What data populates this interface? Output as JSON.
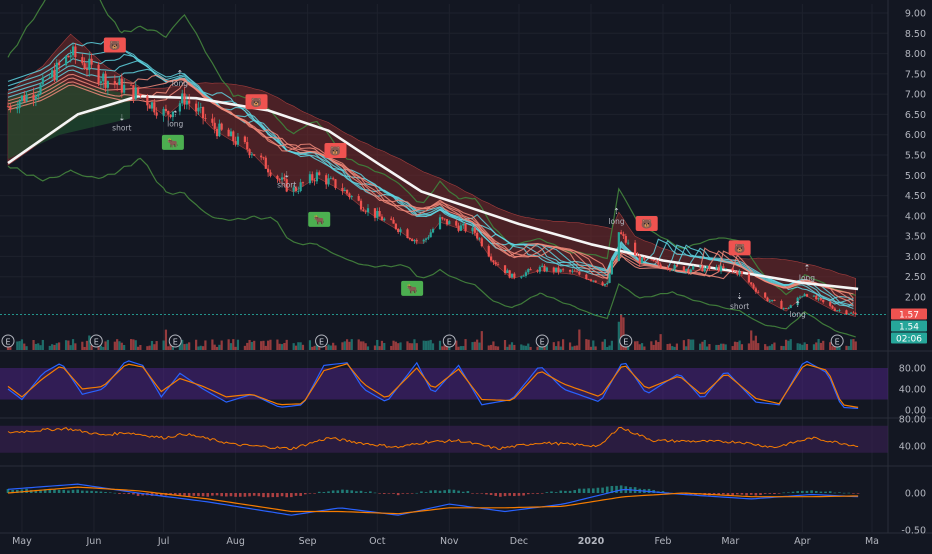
{
  "chart_data": {
    "type": "candlestick",
    "x_labels": [
      "May",
      "Jun",
      "Jul",
      "Aug",
      "Sep",
      "Oct",
      "Nov",
      "Dec",
      "2020",
      "Feb",
      "Mar",
      "Apr",
      "Ma"
    ],
    "x_label_dates": [
      "2019-05-01",
      "2019-06-01",
      "2019-07-01",
      "2019-08-01",
      "2019-09-01",
      "2019-10-01",
      "2019-11-01",
      "2019-12-01",
      "2020-01-01",
      "2020-02-01",
      "2020-03-01",
      "2020-04-01",
      "2020-05-01"
    ],
    "price_axis": {
      "ticks": [
        "9.00",
        "8.50",
        "8.00",
        "7.50",
        "7.00",
        "6.50",
        "6.00",
        "5.50",
        "5.00",
        "4.50",
        "4.00",
        "3.50",
        "3.00",
        "2.50",
        "2.00"
      ],
      "ylim": [
        1.45,
        9.2
      ],
      "badges": [
        {
          "text": "1.57",
          "color": "#ef5350"
        },
        {
          "text": "1.54",
          "color": "#26a69a"
        },
        {
          "text": "02:06",
          "color": "#26a69a"
        }
      ],
      "price_line": 1.57
    },
    "price_anchors": [
      {
        "date": "2019-04-25",
        "value": 6.7
      },
      {
        "date": "2019-05-10",
        "value": 7.2
      },
      {
        "date": "2019-05-22",
        "value": 8.0
      },
      {
        "date": "2019-06-05",
        "value": 7.4
      },
      {
        "date": "2019-06-20",
        "value": 7.0
      },
      {
        "date": "2019-07-02",
        "value": 6.5
      },
      {
        "date": "2019-07-10",
        "value": 6.9
      },
      {
        "date": "2019-07-22",
        "value": 6.2
      },
      {
        "date": "2019-08-08",
        "value": 5.6
      },
      {
        "date": "2019-08-25",
        "value": 4.6
      },
      {
        "date": "2019-09-05",
        "value": 5.0
      },
      {
        "date": "2019-09-15",
        "value": 4.7
      },
      {
        "date": "2019-09-28",
        "value": 4.1
      },
      {
        "date": "2019-10-10",
        "value": 3.7
      },
      {
        "date": "2019-10-20",
        "value": 3.3
      },
      {
        "date": "2019-10-28",
        "value": 3.9
      },
      {
        "date": "2019-11-12",
        "value": 3.6
      },
      {
        "date": "2019-11-20",
        "value": 2.9
      },
      {
        "date": "2019-11-28",
        "value": 2.5
      },
      {
        "date": "2019-12-10",
        "value": 2.7
      },
      {
        "date": "2019-12-25",
        "value": 2.6
      },
      {
        "date": "2020-01-08",
        "value": 2.3
      },
      {
        "date": "2020-01-13",
        "value": 3.6
      },
      {
        "date": "2020-01-22",
        "value": 2.9
      },
      {
        "date": "2020-02-08",
        "value": 2.7
      },
      {
        "date": "2020-02-25",
        "value": 2.7
      },
      {
        "date": "2020-03-05",
        "value": 2.6
      },
      {
        "date": "2020-03-15",
        "value": 2.0
      },
      {
        "date": "2020-03-25",
        "value": 1.7
      },
      {
        "date": "2020-04-02",
        "value": 2.1
      },
      {
        "date": "2020-04-15",
        "value": 1.7
      },
      {
        "date": "2020-04-24",
        "value": 1.57
      }
    ],
    "moving_average": [
      {
        "date": "2019-04-25",
        "value": 5.3
      },
      {
        "date": "2019-05-25",
        "value": 6.5
      },
      {
        "date": "2019-06-20",
        "value": 6.95
      },
      {
        "date": "2019-07-15",
        "value": 6.9
      },
      {
        "date": "2019-08-15",
        "value": 6.6
      },
      {
        "date": "2019-09-10",
        "value": 6.1
      },
      {
        "date": "2019-10-01",
        "value": 5.3
      },
      {
        "date": "2019-10-20",
        "value": 4.6
      },
      {
        "date": "2019-11-10",
        "value": 4.2
      },
      {
        "date": "2019-12-01",
        "value": 3.8
      },
      {
        "date": "2020-01-01",
        "value": 3.3
      },
      {
        "date": "2020-02-01",
        "value": 2.9
      },
      {
        "date": "2020-03-01",
        "value": 2.65
      },
      {
        "date": "2020-04-01",
        "value": 2.35
      },
      {
        "date": "2020-04-25",
        "value": 2.2
      }
    ],
    "signals": [
      {
        "type": "bear",
        "date": "2019-06-10",
        "value": 8.2
      },
      {
        "type": "short",
        "date": "2019-06-13",
        "value": 6.2
      },
      {
        "type": "long",
        "date": "2019-07-08",
        "value": 7.3
      },
      {
        "type": "long",
        "date": "2019-07-06",
        "value": 6.3
      },
      {
        "type": "bull",
        "date": "2019-07-05",
        "value": 5.8
      },
      {
        "type": "bear",
        "date": "2019-08-10",
        "value": 6.8
      },
      {
        "type": "short",
        "date": "2019-08-23",
        "value": 4.8
      },
      {
        "type": "bear",
        "date": "2019-09-13",
        "value": 5.6
      },
      {
        "type": "bull",
        "date": "2019-09-06",
        "value": 3.9
      },
      {
        "type": "bull",
        "date": "2019-10-16",
        "value": 2.2
      },
      {
        "type": "long",
        "date": "2020-01-12",
        "value": 3.9
      },
      {
        "type": "bear",
        "date": "2020-01-25",
        "value": 3.8
      },
      {
        "type": "bear",
        "date": "2020-03-05",
        "value": 3.2
      },
      {
        "type": "short",
        "date": "2020-03-05",
        "value": 1.8
      },
      {
        "type": "long",
        "date": "2020-04-03",
        "value": 2.5
      },
      {
        "type": "long",
        "date": "2020-03-30",
        "value": 1.6
      }
    ],
    "earnings_markers": [
      "2019-04-25",
      "2019-06-02",
      "2019-07-06",
      "2019-09-07",
      "2019-11-01",
      "2019-12-11",
      "2020-01-16",
      "2020-04-16"
    ],
    "stochastic": {
      "ticks": [
        "80.00",
        "40.00",
        "0.00"
      ],
      "ylim": [
        0,
        100
      ],
      "band": [
        20,
        80
      ],
      "points": [
        {
          "date": "2019-04-25",
          "k": 40,
          "d": 45
        },
        {
          "date": "2019-05-01",
          "k": 20,
          "d": 25
        },
        {
          "date": "2019-05-10",
          "k": 70,
          "d": 60
        },
        {
          "date": "2019-05-18",
          "k": 90,
          "d": 85
        },
        {
          "date": "2019-05-27",
          "k": 30,
          "d": 40
        },
        {
          "date": "2019-06-05",
          "k": 40,
          "d": 45
        },
        {
          "date": "2019-06-15",
          "k": 95,
          "d": 88
        },
        {
          "date": "2019-06-22",
          "k": 85,
          "d": 82
        },
        {
          "date": "2019-06-30",
          "k": 25,
          "d": 35
        },
        {
          "date": "2019-07-08",
          "k": 70,
          "d": 60
        },
        {
          "date": "2019-07-18",
          "k": 40,
          "d": 45
        },
        {
          "date": "2019-07-28",
          "k": 15,
          "d": 25
        },
        {
          "date": "2019-08-08",
          "k": 30,
          "d": 30
        },
        {
          "date": "2019-08-20",
          "k": 5,
          "d": 10
        },
        {
          "date": "2019-08-30",
          "k": 10,
          "d": 12
        },
        {
          "date": "2019-09-08",
          "k": 85,
          "d": 75
        },
        {
          "date": "2019-09-18",
          "k": 90,
          "d": 88
        },
        {
          "date": "2019-09-25",
          "k": 40,
          "d": 50
        },
        {
          "date": "2019-10-05",
          "k": 15,
          "d": 22
        },
        {
          "date": "2019-10-18",
          "k": 90,
          "d": 80
        },
        {
          "date": "2019-10-25",
          "k": 30,
          "d": 40
        },
        {
          "date": "2019-11-05",
          "k": 85,
          "d": 78
        },
        {
          "date": "2019-11-15",
          "k": 10,
          "d": 20
        },
        {
          "date": "2019-11-28",
          "k": 20,
          "d": 18
        },
        {
          "date": "2019-12-10",
          "k": 85,
          "d": 75
        },
        {
          "date": "2019-12-20",
          "k": 40,
          "d": 50
        },
        {
          "date": "2020-01-05",
          "k": 15,
          "d": 25
        },
        {
          "date": "2020-01-15",
          "k": 95,
          "d": 88
        },
        {
          "date": "2020-01-25",
          "k": 30,
          "d": 40
        },
        {
          "date": "2020-02-08",
          "k": 70,
          "d": 65
        },
        {
          "date": "2020-02-18",
          "k": 20,
          "d": 28
        },
        {
          "date": "2020-02-28",
          "k": 75,
          "d": 70
        },
        {
          "date": "2020-03-12",
          "k": 15,
          "d": 22
        },
        {
          "date": "2020-03-22",
          "k": 10,
          "d": 12
        },
        {
          "date": "2020-04-02",
          "k": 95,
          "d": 88
        },
        {
          "date": "2020-04-12",
          "k": 70,
          "d": 75
        },
        {
          "date": "2020-04-18",
          "k": 5,
          "d": 10
        },
        {
          "date": "2020-04-25",
          "k": 3,
          "d": 5
        }
      ]
    },
    "rsi": {
      "ticks": [
        "80.00",
        "40.00"
      ],
      "ylim": [
        20,
        100
      ],
      "band": [
        30,
        70
      ],
      "points": [
        {
          "date": "2019-04-25",
          "value": 60
        },
        {
          "date": "2019-05-20",
          "value": 66
        },
        {
          "date": "2019-06-05",
          "value": 56
        },
        {
          "date": "2019-06-15",
          "value": 60
        },
        {
          "date": "2019-07-01",
          "value": 52
        },
        {
          "date": "2019-07-10",
          "value": 58
        },
        {
          "date": "2019-08-01",
          "value": 42
        },
        {
          "date": "2019-08-25",
          "value": 36
        },
        {
          "date": "2019-09-10",
          "value": 52
        },
        {
          "date": "2019-09-25",
          "value": 44
        },
        {
          "date": "2019-10-10",
          "value": 38
        },
        {
          "date": "2019-10-22",
          "value": 46
        },
        {
          "date": "2019-11-05",
          "value": 48
        },
        {
          "date": "2019-11-22",
          "value": 36
        },
        {
          "date": "2019-12-10",
          "value": 45
        },
        {
          "date": "2020-01-05",
          "value": 40
        },
        {
          "date": "2020-01-13",
          "value": 68
        },
        {
          "date": "2020-01-28",
          "value": 48
        },
        {
          "date": "2020-02-15",
          "value": 47
        },
        {
          "date": "2020-03-05",
          "value": 46
        },
        {
          "date": "2020-03-20",
          "value": 38
        },
        {
          "date": "2020-04-05",
          "value": 52
        },
        {
          "date": "2020-04-25",
          "value": 40
        }
      ]
    },
    "macd": {
      "ticks": [
        "0.00",
        "-0.50"
      ],
      "ylim": [
        -0.62,
        0.35
      ],
      "points": [
        {
          "date": "2019-04-25",
          "macd": 0.05,
          "signal": 0.0,
          "hist": 0.05
        },
        {
          "date": "2019-05-25",
          "macd": 0.12,
          "signal": 0.08,
          "hist": 0.04
        },
        {
          "date": "2019-06-20",
          "macd": 0.0,
          "signal": 0.03,
          "hist": -0.03
        },
        {
          "date": "2019-07-20",
          "macd": -0.12,
          "signal": -0.08,
          "hist": -0.04
        },
        {
          "date": "2019-08-25",
          "macd": -0.3,
          "signal": -0.25,
          "hist": -0.05
        },
        {
          "date": "2019-09-15",
          "macd": -0.2,
          "signal": -0.25,
          "hist": 0.05
        },
        {
          "date": "2019-10-10",
          "macd": -0.3,
          "signal": -0.28,
          "hist": -0.02
        },
        {
          "date": "2019-11-01",
          "macd": -0.15,
          "signal": -0.2,
          "hist": 0.05
        },
        {
          "date": "2019-11-25",
          "macd": -0.25,
          "signal": -0.2,
          "hist": -0.05
        },
        {
          "date": "2019-12-20",
          "macd": -0.15,
          "signal": -0.18,
          "hist": 0.03
        },
        {
          "date": "2020-01-15",
          "macd": 0.05,
          "signal": -0.05,
          "hist": 0.1
        },
        {
          "date": "2020-02-10",
          "macd": -0.02,
          "signal": 0.0,
          "hist": -0.02
        },
        {
          "date": "2020-03-10",
          "macd": -0.08,
          "signal": -0.05,
          "hist": -0.03
        },
        {
          "date": "2020-04-05",
          "macd": -0.02,
          "signal": -0.05,
          "hist": 0.03
        },
        {
          "date": "2020-04-25",
          "macd": -0.05,
          "signal": -0.04,
          "hist": -0.01
        }
      ]
    },
    "colors": {
      "background": "#131722",
      "up": "#26a69a",
      "down": "#ef5350",
      "cloud": "#7a2a2a",
      "moving_average": "#f5f5f5",
      "bb_line": "#3f7a3a",
      "ribbon_cool": "#5fd3e0",
      "ribbon_warm": "#f28a7a",
      "stoch_k": "#2962ff",
      "stoch_d": "#f57c00",
      "rsi": "#f57c00",
      "stoch_band": "#4a2280",
      "rsi_band": "#3a1f55",
      "macd": "#2962ff",
      "macd_signal": "#f57c00"
    }
  }
}
